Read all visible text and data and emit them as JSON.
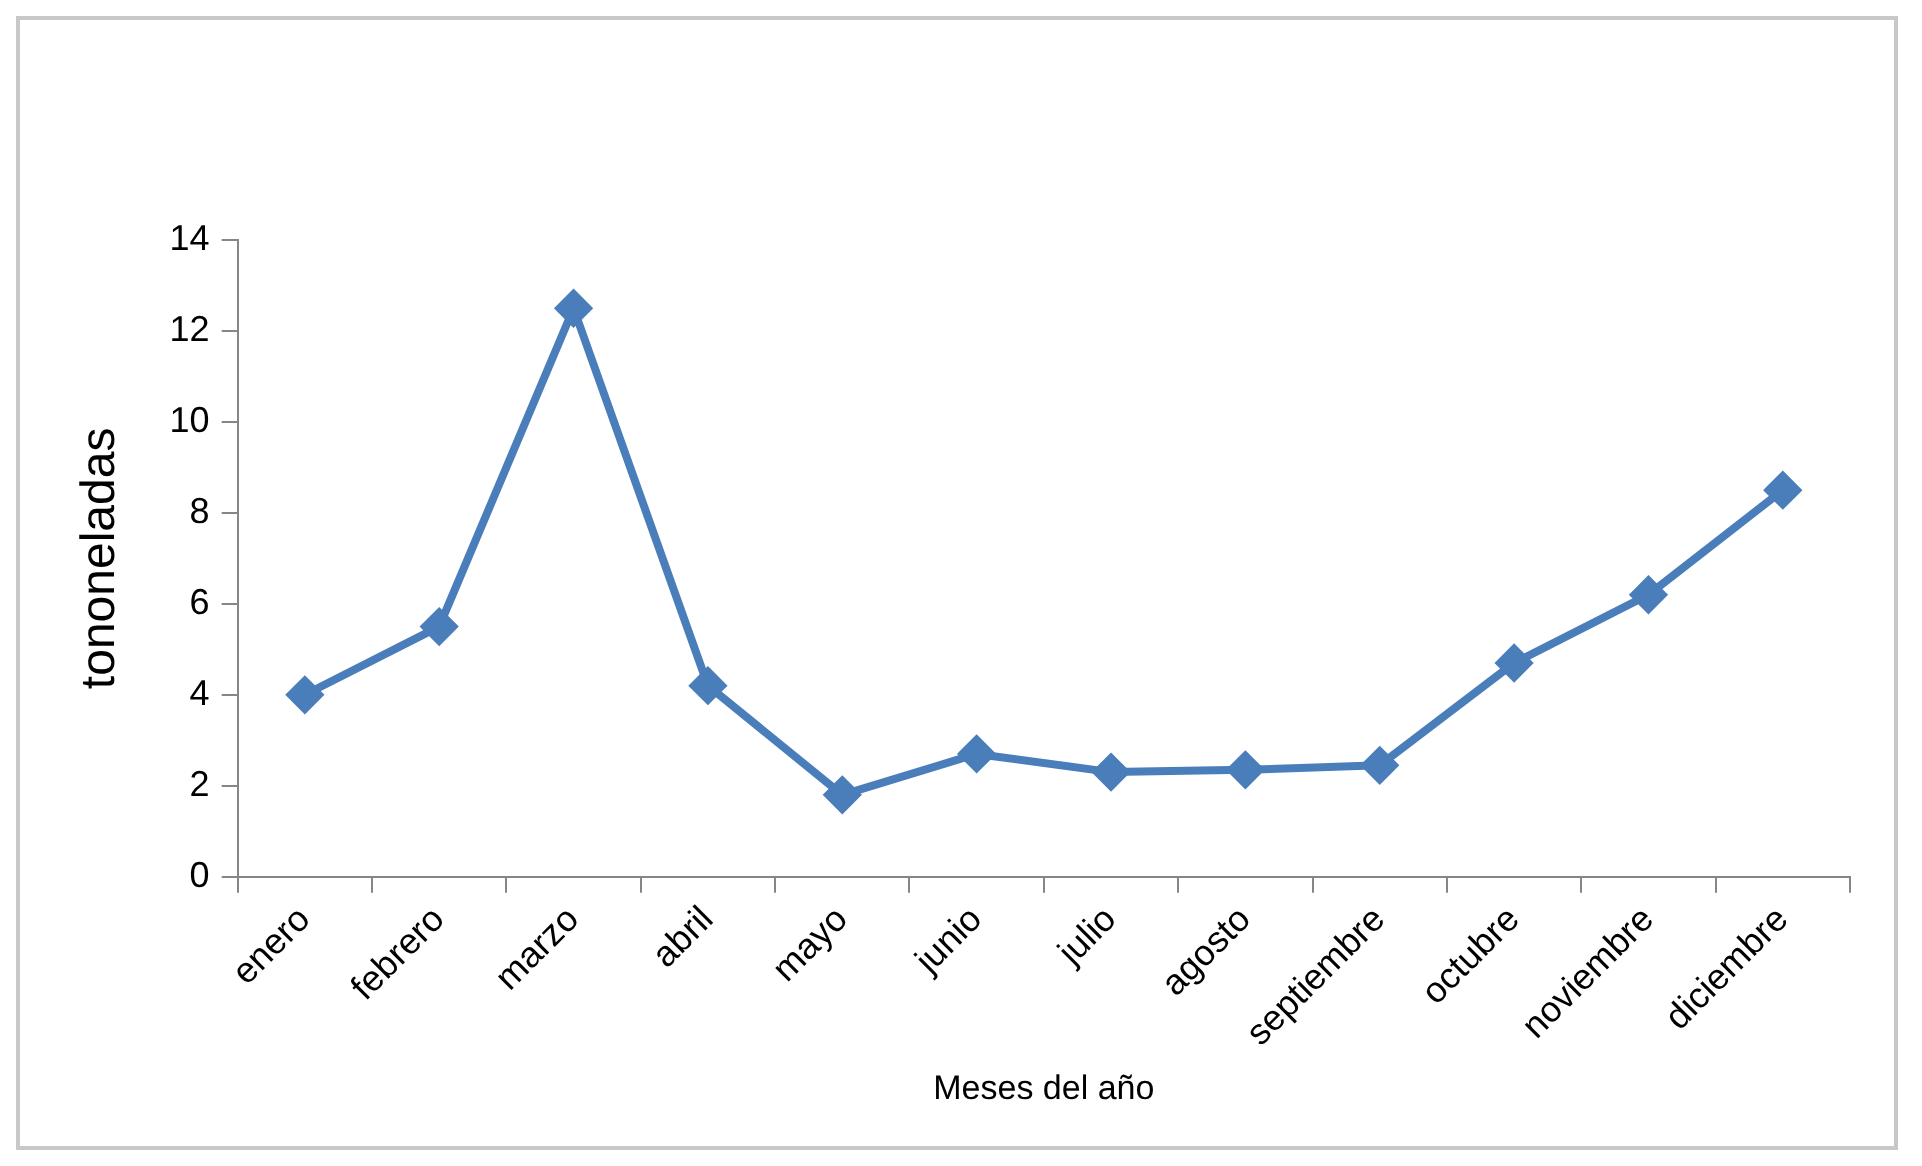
{
  "chart_data": {
    "type": "line",
    "xlabel": "Meses del año",
    "ylabel": "tononeladas",
    "categories": [
      "enero",
      "febrero",
      "marzo",
      "abril",
      "mayo",
      "junio",
      "julio",
      "agosto",
      "septiembre",
      "octubre",
      "noviembre",
      "diciembre"
    ],
    "series": [
      {
        "color": "#4a7ebb",
        "values": [
          4,
          5.5,
          12.5,
          4.2,
          1.8,
          2.7,
          2.3,
          2.35,
          2.45,
          4.7,
          6.2,
          8.5
        ]
      }
    ],
    "ylim": [
      0,
      14
    ],
    "yticks": [
      0,
      2,
      4,
      6,
      8,
      10,
      12,
      14
    ],
    "grid": false,
    "legend": false,
    "marker": "diamond",
    "line_style": "solid"
  }
}
